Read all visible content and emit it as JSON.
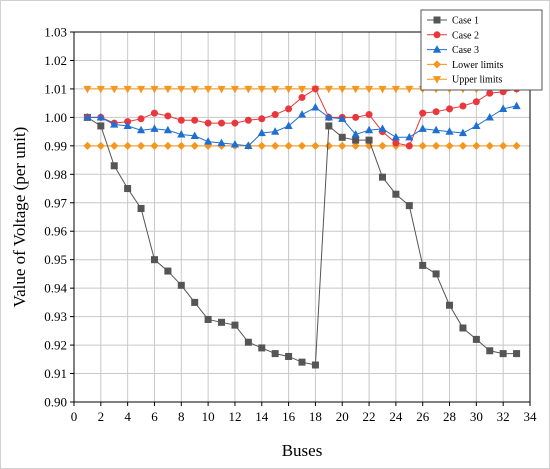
{
  "chart_data": {
    "type": "line",
    "title": "",
    "xlabel": "Buses",
    "ylabel": "Value of Voltage (per unit)",
    "xlim": [
      0,
      34
    ],
    "ylim": [
      0.9,
      1.03
    ],
    "xticks": [
      0,
      2,
      4,
      6,
      8,
      10,
      12,
      14,
      16,
      18,
      20,
      22,
      24,
      26,
      28,
      30,
      32,
      34
    ],
    "yticks": [
      0.9,
      0.91,
      0.92,
      0.93,
      0.94,
      0.95,
      0.96,
      0.97,
      0.98,
      0.99,
      1.0,
      1.01,
      1.02,
      1.03
    ],
    "grid": true,
    "legend_position": "top-right",
    "x": [
      1,
      2,
      3,
      4,
      5,
      6,
      7,
      8,
      9,
      10,
      11,
      12,
      13,
      14,
      15,
      16,
      17,
      18,
      19,
      20,
      21,
      22,
      23,
      24,
      25,
      26,
      27,
      28,
      29,
      30,
      31,
      32,
      33
    ],
    "series": [
      {
        "name": "Case 1",
        "color": "#555555",
        "marker": "square",
        "values": [
          1.0,
          0.997,
          0.983,
          0.975,
          0.968,
          0.95,
          0.946,
          0.941,
          0.935,
          0.929,
          0.928,
          0.927,
          0.921,
          0.919,
          0.917,
          0.916,
          0.914,
          0.913,
          0.997,
          0.993,
          0.992,
          0.992,
          0.979,
          0.973,
          0.969,
          0.948,
          0.945,
          0.934,
          0.926,
          0.922,
          0.918,
          0.917,
          0.917
        ]
      },
      {
        "name": "Case 2",
        "color": "#e8383d",
        "marker": "circle",
        "values": [
          1.0,
          1.0,
          0.998,
          0.9985,
          0.9995,
          1.0015,
          1.0005,
          0.999,
          0.999,
          0.998,
          0.998,
          0.998,
          0.999,
          0.9995,
          1.001,
          1.003,
          1.007,
          1.01,
          1.0,
          1.0,
          1.0,
          1.001,
          0.995,
          0.991,
          0.99,
          1.0015,
          1.002,
          1.003,
          1.004,
          1.0055,
          1.0085,
          1.009,
          1.01
        ]
      },
      {
        "name": "Case 3",
        "color": "#1f6fd1",
        "marker": "triangle-up",
        "values": [
          1.0,
          1.0,
          0.9975,
          0.997,
          0.9955,
          0.996,
          0.9955,
          0.994,
          0.9935,
          0.9915,
          0.991,
          0.9905,
          0.99,
          0.9945,
          0.995,
          0.997,
          1.001,
          1.0035,
          1.0,
          0.9995,
          0.994,
          0.9955,
          0.996,
          0.993,
          0.993,
          0.996,
          0.9955,
          0.995,
          0.9945,
          0.997,
          1.0,
          1.003,
          1.004
        ]
      },
      {
        "name": "Lower limits",
        "color": "#f5961e",
        "marker": "diamond",
        "values": [
          0.99,
          0.99,
          0.99,
          0.99,
          0.99,
          0.99,
          0.99,
          0.99,
          0.99,
          0.99,
          0.99,
          0.99,
          0.99,
          0.99,
          0.99,
          0.99,
          0.99,
          0.99,
          0.99,
          0.99,
          0.99,
          0.99,
          0.99,
          0.99,
          0.99,
          0.99,
          0.99,
          0.99,
          0.99,
          0.99,
          0.99,
          0.99,
          0.99
        ]
      },
      {
        "name": "Upper limits",
        "color": "#f5961e",
        "marker": "triangle-down",
        "values": [
          1.01,
          1.01,
          1.01,
          1.01,
          1.01,
          1.01,
          1.01,
          1.01,
          1.01,
          1.01,
          1.01,
          1.01,
          1.01,
          1.01,
          1.01,
          1.01,
          1.01,
          1.01,
          1.01,
          1.01,
          1.01,
          1.01,
          1.01,
          1.01,
          1.01,
          1.01,
          1.01,
          1.01,
          1.01,
          1.01,
          1.01,
          1.01,
          1.01
        ]
      }
    ]
  }
}
